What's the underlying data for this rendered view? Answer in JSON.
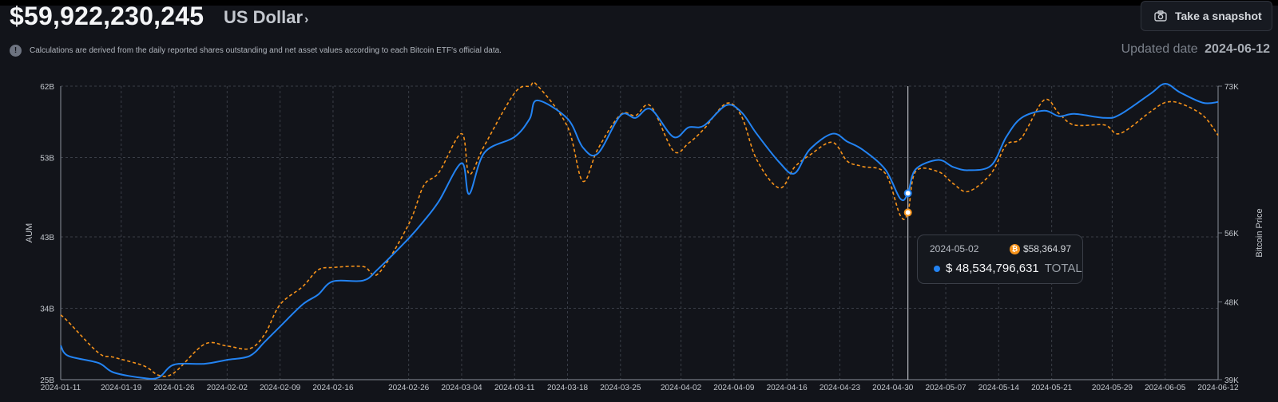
{
  "header": {
    "total_value": "$59,922,230,245",
    "currency": "US Dollar",
    "snapshot_label": "Take a snapshot",
    "info_text": "Calculations are derived from the daily reported shares outstanding and net asset values according to each Bitcoin ETF's official data.",
    "updated_label": "Updated date",
    "updated_date": "2024-06-12"
  },
  "tooltip": {
    "date": "2024-05-02",
    "btc_price": "$58,364.97",
    "total_value": "$ 48,534,796,631",
    "total_label": "TOTAL"
  },
  "colors": {
    "aum": "#2383f2",
    "btc": "#f7931a",
    "background": "#12141a"
  },
  "chart_data": {
    "type": "line",
    "x": [
      "2024-01-11",
      "2024-01-12",
      "2024-01-16",
      "2024-01-18",
      "2024-01-22",
      "2024-01-24",
      "2024-01-26",
      "2024-01-30",
      "2024-02-02",
      "2024-02-05",
      "2024-02-07",
      "2024-02-09",
      "2024-02-12",
      "2024-02-14",
      "2024-02-16",
      "2024-02-20",
      "2024-02-22",
      "2024-02-26",
      "2024-02-28",
      "2024-03-01",
      "2024-03-04",
      "2024-03-05",
      "2024-03-07",
      "2024-03-11",
      "2024-03-13",
      "2024-03-14",
      "2024-03-18",
      "2024-03-20",
      "2024-03-22",
      "2024-03-25",
      "2024-03-27",
      "2024-03-29",
      "2024-04-01",
      "2024-04-03",
      "2024-04-05",
      "2024-04-08",
      "2024-04-10",
      "2024-04-12",
      "2024-04-15",
      "2024-04-17",
      "2024-04-19",
      "2024-04-22",
      "2024-04-24",
      "2024-04-26",
      "2024-04-29",
      "2024-05-01",
      "2024-05-02",
      "2024-05-03",
      "2024-05-06",
      "2024-05-08",
      "2024-05-10",
      "2024-05-13",
      "2024-05-15",
      "2024-05-17",
      "2024-05-20",
      "2024-05-22",
      "2024-05-24",
      "2024-05-28",
      "2024-05-30",
      "2024-06-03",
      "2024-06-05",
      "2024-06-07",
      "2024-06-10",
      "2024-06-12"
    ],
    "series": [
      {
        "axis": "left",
        "values": [
          29.3,
          28.0,
          27.1,
          25.9,
          25.2,
          25.3,
          26.9,
          27.0,
          27.5,
          28.0,
          29.8,
          31.7,
          34.5,
          35.7,
          37.4,
          37.5,
          39.0,
          42.8,
          45.0,
          47.5,
          52.3,
          48.4,
          53.6,
          55.6,
          57.9,
          60.2,
          57.9,
          54.3,
          53.5,
          58.3,
          58.0,
          59.1,
          55.6,
          56.8,
          57.0,
          59.6,
          58.7,
          56.0,
          52.4,
          51.0,
          54.0,
          56.0,
          55.0,
          54.0,
          51.5,
          47.8,
          48.5,
          51.5,
          52.7,
          51.8,
          51.4,
          52.0,
          55.6,
          58.0,
          58.9,
          58.2,
          58.5,
          58.0,
          58.4,
          61.0,
          62.3,
          61.2,
          59.9,
          60.0
        ]
      },
      {
        "axis": "right",
        "values": [
          46500,
          45700,
          42100,
          41600,
          40600,
          39500,
          39800,
          43100,
          42900,
          42600,
          44300,
          47700,
          49800,
          51700,
          52000,
          52100,
          51300,
          57000,
          61500,
          63000,
          67500,
          62800,
          66100,
          72200,
          73000,
          73100,
          68300,
          62000,
          65700,
          69700,
          69600,
          70700,
          65500,
          66400,
          68000,
          71000,
          69500,
          64500,
          61200,
          63600,
          65000,
          66500,
          64300,
          63700,
          62900,
          58000,
          58364.97,
          63100,
          63100,
          61700,
          60800,
          62900,
          66200,
          67000,
          71400,
          69800,
          68500,
          68500,
          67500,
          70000,
          71100,
          71000,
          69600,
          67300
        ]
      }
    ],
    "xlabel": "",
    "ylabel": "AUM",
    "y2label": "Bitcoin Price",
    "ylim": [
      25,
      62
    ],
    "y2lim": [
      39000,
      73000
    ],
    "y_ticks": [
      "62B",
      "53B",
      "43B",
      "34B",
      "25B"
    ],
    "y2_ticks": [
      "73K",
      "56K",
      "48K",
      "39K"
    ],
    "x_ticks": [
      "2024-01-11",
      "2024-01-19",
      "2024-01-26",
      "2024-02-02",
      "2024-02-09",
      "2024-02-16",
      "2024-02-26",
      "2024-03-04",
      "2024-03-11",
      "2024-03-18",
      "2024-03-25",
      "2024-04-02",
      "2024-04-09",
      "2024-04-16",
      "2024-04-23",
      "2024-04-30",
      "2024-05-07",
      "2024-05-14",
      "2024-05-21",
      "2024-05-29",
      "2024-06-05",
      "2024-06-12"
    ],
    "grid": true,
    "highlight_date": "2024-05-02"
  }
}
